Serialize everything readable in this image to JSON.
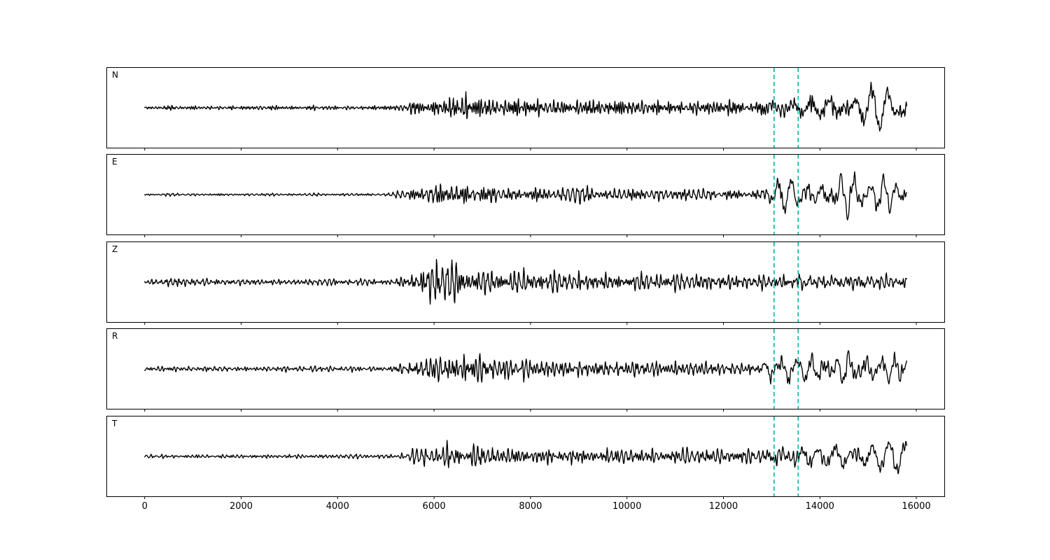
{
  "chart_data": {
    "type": "line",
    "title": "",
    "xlabel": "",
    "ylabel": "",
    "legend": "none",
    "grid": false,
    "xlim": [
      -780,
      16580
    ],
    "xticks": [
      0,
      2000,
      4000,
      6000,
      8000,
      10000,
      12000,
      14000,
      16000
    ],
    "line_color": "#000000",
    "line_width": 1.35,
    "pick_lines": {
      "x": [
        13050,
        13550
      ],
      "color": "#00b2b2",
      "style": "dashed"
    },
    "gen": {
      "n_samples": 1581,
      "dx": 10,
      "bandA": {
        "pmin": 35,
        "pmax": 110,
        "K": 12
      },
      "bandB": {
        "pmin": 190,
        "pmax": 430,
        "K": 7
      }
    },
    "panels": [
      {
        "label": "N",
        "seedA": 101,
        "seedB": 201,
        "envA": [
          [
            0,
            0.07
          ],
          [
            5200,
            0.08
          ],
          [
            5600,
            0.25
          ],
          [
            6200,
            0.38
          ],
          [
            6700,
            0.45
          ],
          [
            7300,
            0.32
          ],
          [
            8500,
            0.3
          ],
          [
            10500,
            0.26
          ],
          [
            12600,
            0.24
          ],
          [
            13200,
            0.3
          ],
          [
            14000,
            0.3
          ],
          [
            15800,
            0.28
          ]
        ],
        "envB": [
          [
            0,
            0
          ],
          [
            12600,
            0
          ],
          [
            13200,
            0.2
          ],
          [
            13800,
            0.25
          ],
          [
            14300,
            0.7
          ],
          [
            14900,
            0.55
          ],
          [
            15500,
            0.85
          ],
          [
            15800,
            0.5
          ]
        ]
      },
      {
        "label": "E",
        "seedA": 102,
        "seedB": 202,
        "envA": [
          [
            0,
            0.05
          ],
          [
            5100,
            0.06
          ],
          [
            5500,
            0.28
          ],
          [
            6200,
            0.5
          ],
          [
            6600,
            0.58
          ],
          [
            7200,
            0.35
          ],
          [
            8500,
            0.3
          ],
          [
            10500,
            0.24
          ],
          [
            12600,
            0.22
          ],
          [
            13100,
            0.35
          ],
          [
            13600,
            0.3
          ],
          [
            14200,
            0.35
          ],
          [
            15000,
            0.28
          ],
          [
            15800,
            0.24
          ]
        ],
        "envB": [
          [
            0,
            0
          ],
          [
            12700,
            0
          ],
          [
            13100,
            0.45
          ],
          [
            13450,
            0.55
          ],
          [
            13900,
            0.25
          ],
          [
            14400,
            0.75
          ],
          [
            15000,
            0.35
          ],
          [
            15500,
            0.45
          ],
          [
            15800,
            0.3
          ]
        ]
      },
      {
        "label": "Z",
        "seedA": 103,
        "seedB": 203,
        "envA": [
          [
            0,
            0.1
          ],
          [
            350,
            0.12
          ],
          [
            550,
            0.28
          ],
          [
            800,
            0.16
          ],
          [
            1500,
            0.13
          ],
          [
            3000,
            0.12
          ],
          [
            5200,
            0.14
          ],
          [
            5600,
            0.4
          ],
          [
            5950,
            0.95
          ],
          [
            6300,
            0.85
          ],
          [
            6800,
            0.5
          ],
          [
            7500,
            0.45
          ],
          [
            8800,
            0.4
          ],
          [
            10500,
            0.33
          ],
          [
            12500,
            0.3
          ],
          [
            14000,
            0.26
          ],
          [
            15800,
            0.24
          ]
        ],
        "envB": [
          [
            0,
            0
          ],
          [
            12800,
            0
          ],
          [
            13800,
            0.12
          ],
          [
            15800,
            0.12
          ]
        ]
      },
      {
        "label": "R",
        "seedA": 104,
        "seedB": 204,
        "envA": [
          [
            0,
            0.1
          ],
          [
            5100,
            0.1
          ],
          [
            5500,
            0.3
          ],
          [
            6200,
            0.55
          ],
          [
            6700,
            0.6
          ],
          [
            7300,
            0.38
          ],
          [
            8800,
            0.33
          ],
          [
            10800,
            0.28
          ],
          [
            12500,
            0.2
          ],
          [
            13000,
            0.3
          ],
          [
            13500,
            0.28
          ],
          [
            14100,
            0.32
          ],
          [
            15000,
            0.3
          ],
          [
            15800,
            0.26
          ]
        ],
        "envB": [
          [
            0,
            0
          ],
          [
            12700,
            0
          ],
          [
            13050,
            0.5
          ],
          [
            13350,
            0.6
          ],
          [
            13800,
            0.3
          ],
          [
            14350,
            0.7
          ],
          [
            14900,
            0.45
          ],
          [
            15400,
            0.5
          ],
          [
            15800,
            0.3
          ]
        ]
      },
      {
        "label": "T",
        "seedA": 105,
        "seedB": 205,
        "envA": [
          [
            0,
            0.07
          ],
          [
            5200,
            0.08
          ],
          [
            5700,
            0.28
          ],
          [
            6300,
            0.45
          ],
          [
            6800,
            0.42
          ],
          [
            7400,
            0.33
          ],
          [
            9000,
            0.3
          ],
          [
            11000,
            0.27
          ],
          [
            12600,
            0.26
          ],
          [
            13300,
            0.3
          ],
          [
            14000,
            0.28
          ],
          [
            15800,
            0.26
          ]
        ],
        "envB": [
          [
            0,
            0
          ],
          [
            12800,
            0
          ],
          [
            13300,
            0.25
          ],
          [
            13900,
            0.3
          ],
          [
            14500,
            0.75
          ],
          [
            15000,
            0.5
          ],
          [
            15500,
            0.65
          ],
          [
            15800,
            0.4
          ]
        ]
      }
    ]
  }
}
